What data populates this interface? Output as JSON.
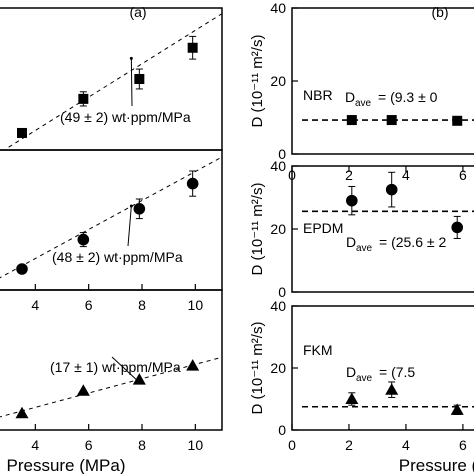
{
  "chart_data": [
    {
      "type": "scatter",
      "panel_label": "(a)",
      "subpanel": 1,
      "x": [
        3.5,
        5.8,
        7.9,
        9.9
      ],
      "y": [
        1.2,
        3.6,
        5.0,
        7.2
      ],
      "y_err": [
        0.0,
        0.5,
        0.7,
        0.8
      ],
      "marker": "square",
      "xlim": [
        2.6,
        11.0
      ],
      "ylim": [
        0,
        10
      ],
      "annotation": "(49 ± 2) wt·ppm/MPa",
      "trend_line": {
        "x": [
          3.0,
          11.0
        ],
        "y": [
          0.2,
          9.6
        ]
      }
    },
    {
      "type": "scatter",
      "subpanel": 2,
      "x": [
        3.5,
        5.8,
        7.9,
        9.9
      ],
      "y": [
        1.5,
        3.6,
        5.8,
        7.6
      ],
      "y_err": [
        0.0,
        0.5,
        0.7,
        0.9
      ],
      "marker": "circle",
      "xlim": [
        2.6,
        11.0
      ],
      "ylim": [
        0,
        10
      ],
      "xticks": [
        4,
        6,
        8,
        10
      ],
      "annotation": "(48 ± 2) wt·ppm/MPa",
      "trend_line": {
        "x": [
          2.6,
          11.0
        ],
        "y": [
          0.8,
          9.5
        ]
      }
    },
    {
      "type": "scatter",
      "subpanel": 3,
      "x": [
        3.5,
        5.8,
        7.9,
        9.9
      ],
      "y": [
        1.2,
        2.8,
        3.6,
        4.6
      ],
      "y_err": [
        0.0,
        0.0,
        0.0,
        0.0
      ],
      "marker": "triangle",
      "xlim": [
        2.6,
        11.0
      ],
      "ylim": [
        0,
        10
      ],
      "xticks": [
        4,
        6,
        8,
        10
      ],
      "xlabel": "Pressure (MPa)",
      "annotation": "(17 ± 1) wt·ppm/MPa",
      "trend_line": {
        "x": [
          2.6,
          11.0
        ],
        "y": [
          0.9,
          5.2
        ]
      }
    },
    {
      "type": "scatter",
      "panel_label": "(b)",
      "subpanel": 1,
      "material": "NBR",
      "x": [
        2.1,
        3.5,
        5.8
      ],
      "y": [
        9.3,
        9.3,
        9.1
      ],
      "y_err": [
        0,
        0,
        0
      ],
      "marker": "square",
      "xlim": [
        0,
        6.6
      ],
      "ylim": [
        0,
        40
      ],
      "yticks": [
        0,
        20,
        40
      ],
      "ylabel": "D (10⁻¹¹ m²/s)",
      "average_line": 9.3,
      "average_label": "D",
      "average_label_sub": "ave",
      "average_label_value": "= (9.3 ± 0"
    },
    {
      "type": "scatter",
      "subpanel": 2,
      "material": "EPDM",
      "x": [
        2.1,
        3.5,
        5.8
      ],
      "y": [
        29.0,
        32.5,
        20.5
      ],
      "y_err": [
        4.5,
        5.5,
        3.5
      ],
      "marker": "circle",
      "xlim": [
        0,
        6.6
      ],
      "ylim": [
        0,
        40
      ],
      "yticks": [
        0,
        20,
        40
      ],
      "ticks_top": [
        0,
        2,
        4,
        6
      ],
      "ylabel": "D (10⁻¹¹ m²/s)",
      "average_line": 25.6,
      "average_label": "D",
      "average_label_sub": "ave",
      "average_label_value": "= (25.6 ± 2"
    },
    {
      "type": "scatter",
      "subpanel": 3,
      "material": "FKM",
      "x": [
        2.1,
        3.5,
        5.8
      ],
      "y": [
        10.0,
        13.0,
        6.5
      ],
      "y_err": [
        2.0,
        2.5,
        1.5
      ],
      "marker": "triangle",
      "xlim": [
        0,
        6.6
      ],
      "ylim": [
        0,
        40
      ],
      "yticks": [
        0,
        20,
        40
      ],
      "xticks": [
        0,
        2,
        4,
        6
      ],
      "xlabel": "Pressure (",
      "ylabel": "D (10⁻¹¹ m²/s)",
      "average_line": 7.5,
      "average_label": "D",
      "average_label_sub": "ave",
      "average_label_value": "= (7.5"
    }
  ]
}
